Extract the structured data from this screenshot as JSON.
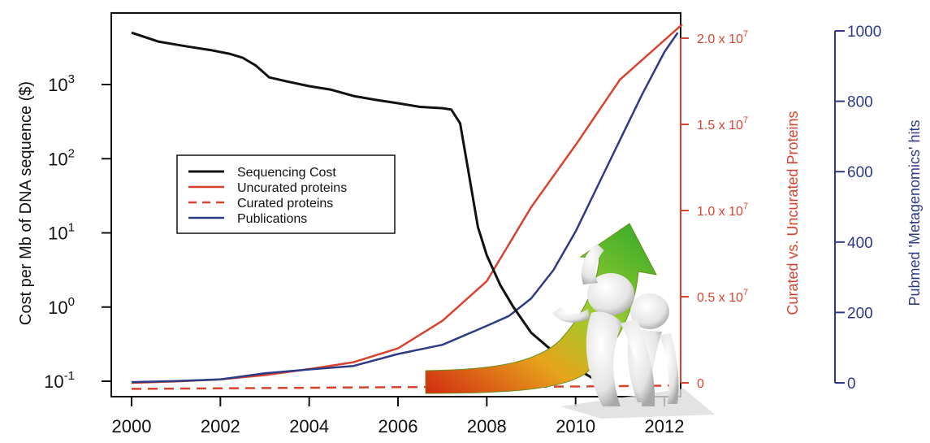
{
  "chart_data": {
    "type": "line",
    "x_ticks": [
      "2000",
      "2002",
      "2004",
      "2006",
      "2008",
      "2010",
      "2012"
    ],
    "left_axis": {
      "label": "Cost per Mb of DNA sequence ($)",
      "scale": "log",
      "ticks": [
        {
          "value": 0.1,
          "base": "10",
          "exp": "-1"
        },
        {
          "value": 1,
          "base": "10",
          "exp": "0"
        },
        {
          "value": 10,
          "base": "10",
          "exp": "1"
        },
        {
          "value": 100,
          "base": "10",
          "exp": "2"
        },
        {
          "value": 1000,
          "base": "10",
          "exp": "3"
        }
      ]
    },
    "right_axis_proteins": {
      "label": "Curated vs. Uncurated Proteins",
      "ticks": [
        {
          "value": 0,
          "text": "0"
        },
        {
          "value": 5000000,
          "text": "0.5 x 10",
          "exp": "7"
        },
        {
          "value": 10000000,
          "text": "1.0 x 10",
          "exp": "7"
        },
        {
          "value": 15000000,
          "text": "1.5 x 10",
          "exp": "7"
        },
        {
          "value": 20000000,
          "text": "2.0 x 10",
          "exp": "7"
        }
      ]
    },
    "right_axis_publications": {
      "label": "Pubmed 'Metagenomics' hits",
      "ticks": [
        "0",
        "200",
        "400",
        "600",
        "800",
        "1000"
      ]
    },
    "legend": {
      "position": "upper-left",
      "entries": [
        {
          "name": "Sequencing Cost",
          "color": "#111111",
          "dash": "solid"
        },
        {
          "name": "Uncurated proteins",
          "color": "#d8432f",
          "dash": "solid"
        },
        {
          "name": "Curated proteins",
          "color": "#d8432f",
          "dash": "dashed"
        },
        {
          "name": "Publications",
          "color": "#2f3a84",
          "dash": "solid"
        }
      ]
    },
    "series": [
      {
        "name": "Sequencing Cost",
        "axis": "left",
        "points": [
          [
            2000.0,
            5000
          ],
          [
            2000.6,
            3800
          ],
          [
            2001.2,
            3300
          ],
          [
            2001.8,
            2900
          ],
          [
            2002.2,
            2600
          ],
          [
            2002.5,
            2300
          ],
          [
            2002.8,
            1800
          ],
          [
            2003.1,
            1250
          ],
          [
            2003.5,
            1100
          ],
          [
            2004.0,
            950
          ],
          [
            2004.5,
            850
          ],
          [
            2005.0,
            700
          ],
          [
            2005.5,
            620
          ],
          [
            2006.0,
            560
          ],
          [
            2006.5,
            500
          ],
          [
            2007.0,
            480
          ],
          [
            2007.2,
            460
          ],
          [
            2007.4,
            300
          ],
          [
            2007.6,
            60
          ],
          [
            2007.8,
            12
          ],
          [
            2008.0,
            5
          ],
          [
            2008.3,
            2
          ],
          [
            2008.6,
            1
          ],
          [
            2009.0,
            0.45
          ],
          [
            2009.5,
            0.25
          ],
          [
            2010.0,
            0.15
          ],
          [
            2010.5,
            0.1
          ]
        ]
      },
      {
        "name": "Uncurated proteins",
        "axis": "proteins",
        "points": [
          [
            2000,
            0
          ],
          [
            2001,
            80000
          ],
          [
            2002,
            200000
          ],
          [
            2003,
            450000
          ],
          [
            2004,
            800000
          ],
          [
            2005,
            1200000
          ],
          [
            2006,
            2000000
          ],
          [
            2007,
            3600000
          ],
          [
            2008,
            5900000
          ],
          [
            2009,
            10200000
          ],
          [
            2010,
            13800000
          ],
          [
            2011,
            17600000
          ],
          [
            2012.4,
            20800000
          ]
        ]
      },
      {
        "name": "Curated proteins",
        "axis": "proteins",
        "points": [
          [
            2000,
            -350000
          ],
          [
            2003,
            -300000
          ],
          [
            2006,
            -250000
          ],
          [
            2008,
            -230000
          ],
          [
            2010,
            -210000
          ],
          [
            2012.4,
            -150000
          ]
        ]
      },
      {
        "name": "Publications",
        "axis": "publications",
        "points": [
          [
            2000,
            2
          ],
          [
            2001,
            5
          ],
          [
            2002,
            10
          ],
          [
            2003,
            27
          ],
          [
            2004,
            38
          ],
          [
            2005,
            48
          ],
          [
            2006,
            82
          ],
          [
            2007,
            108
          ],
          [
            2008,
            162
          ],
          [
            2008.5,
            190
          ],
          [
            2009,
            240
          ],
          [
            2009.5,
            320
          ],
          [
            2010,
            430
          ],
          [
            2010.5,
            560
          ],
          [
            2011,
            690
          ],
          [
            2011.5,
            820
          ],
          [
            2012,
            940
          ],
          [
            2012.3,
            995
          ]
        ]
      }
    ]
  }
}
